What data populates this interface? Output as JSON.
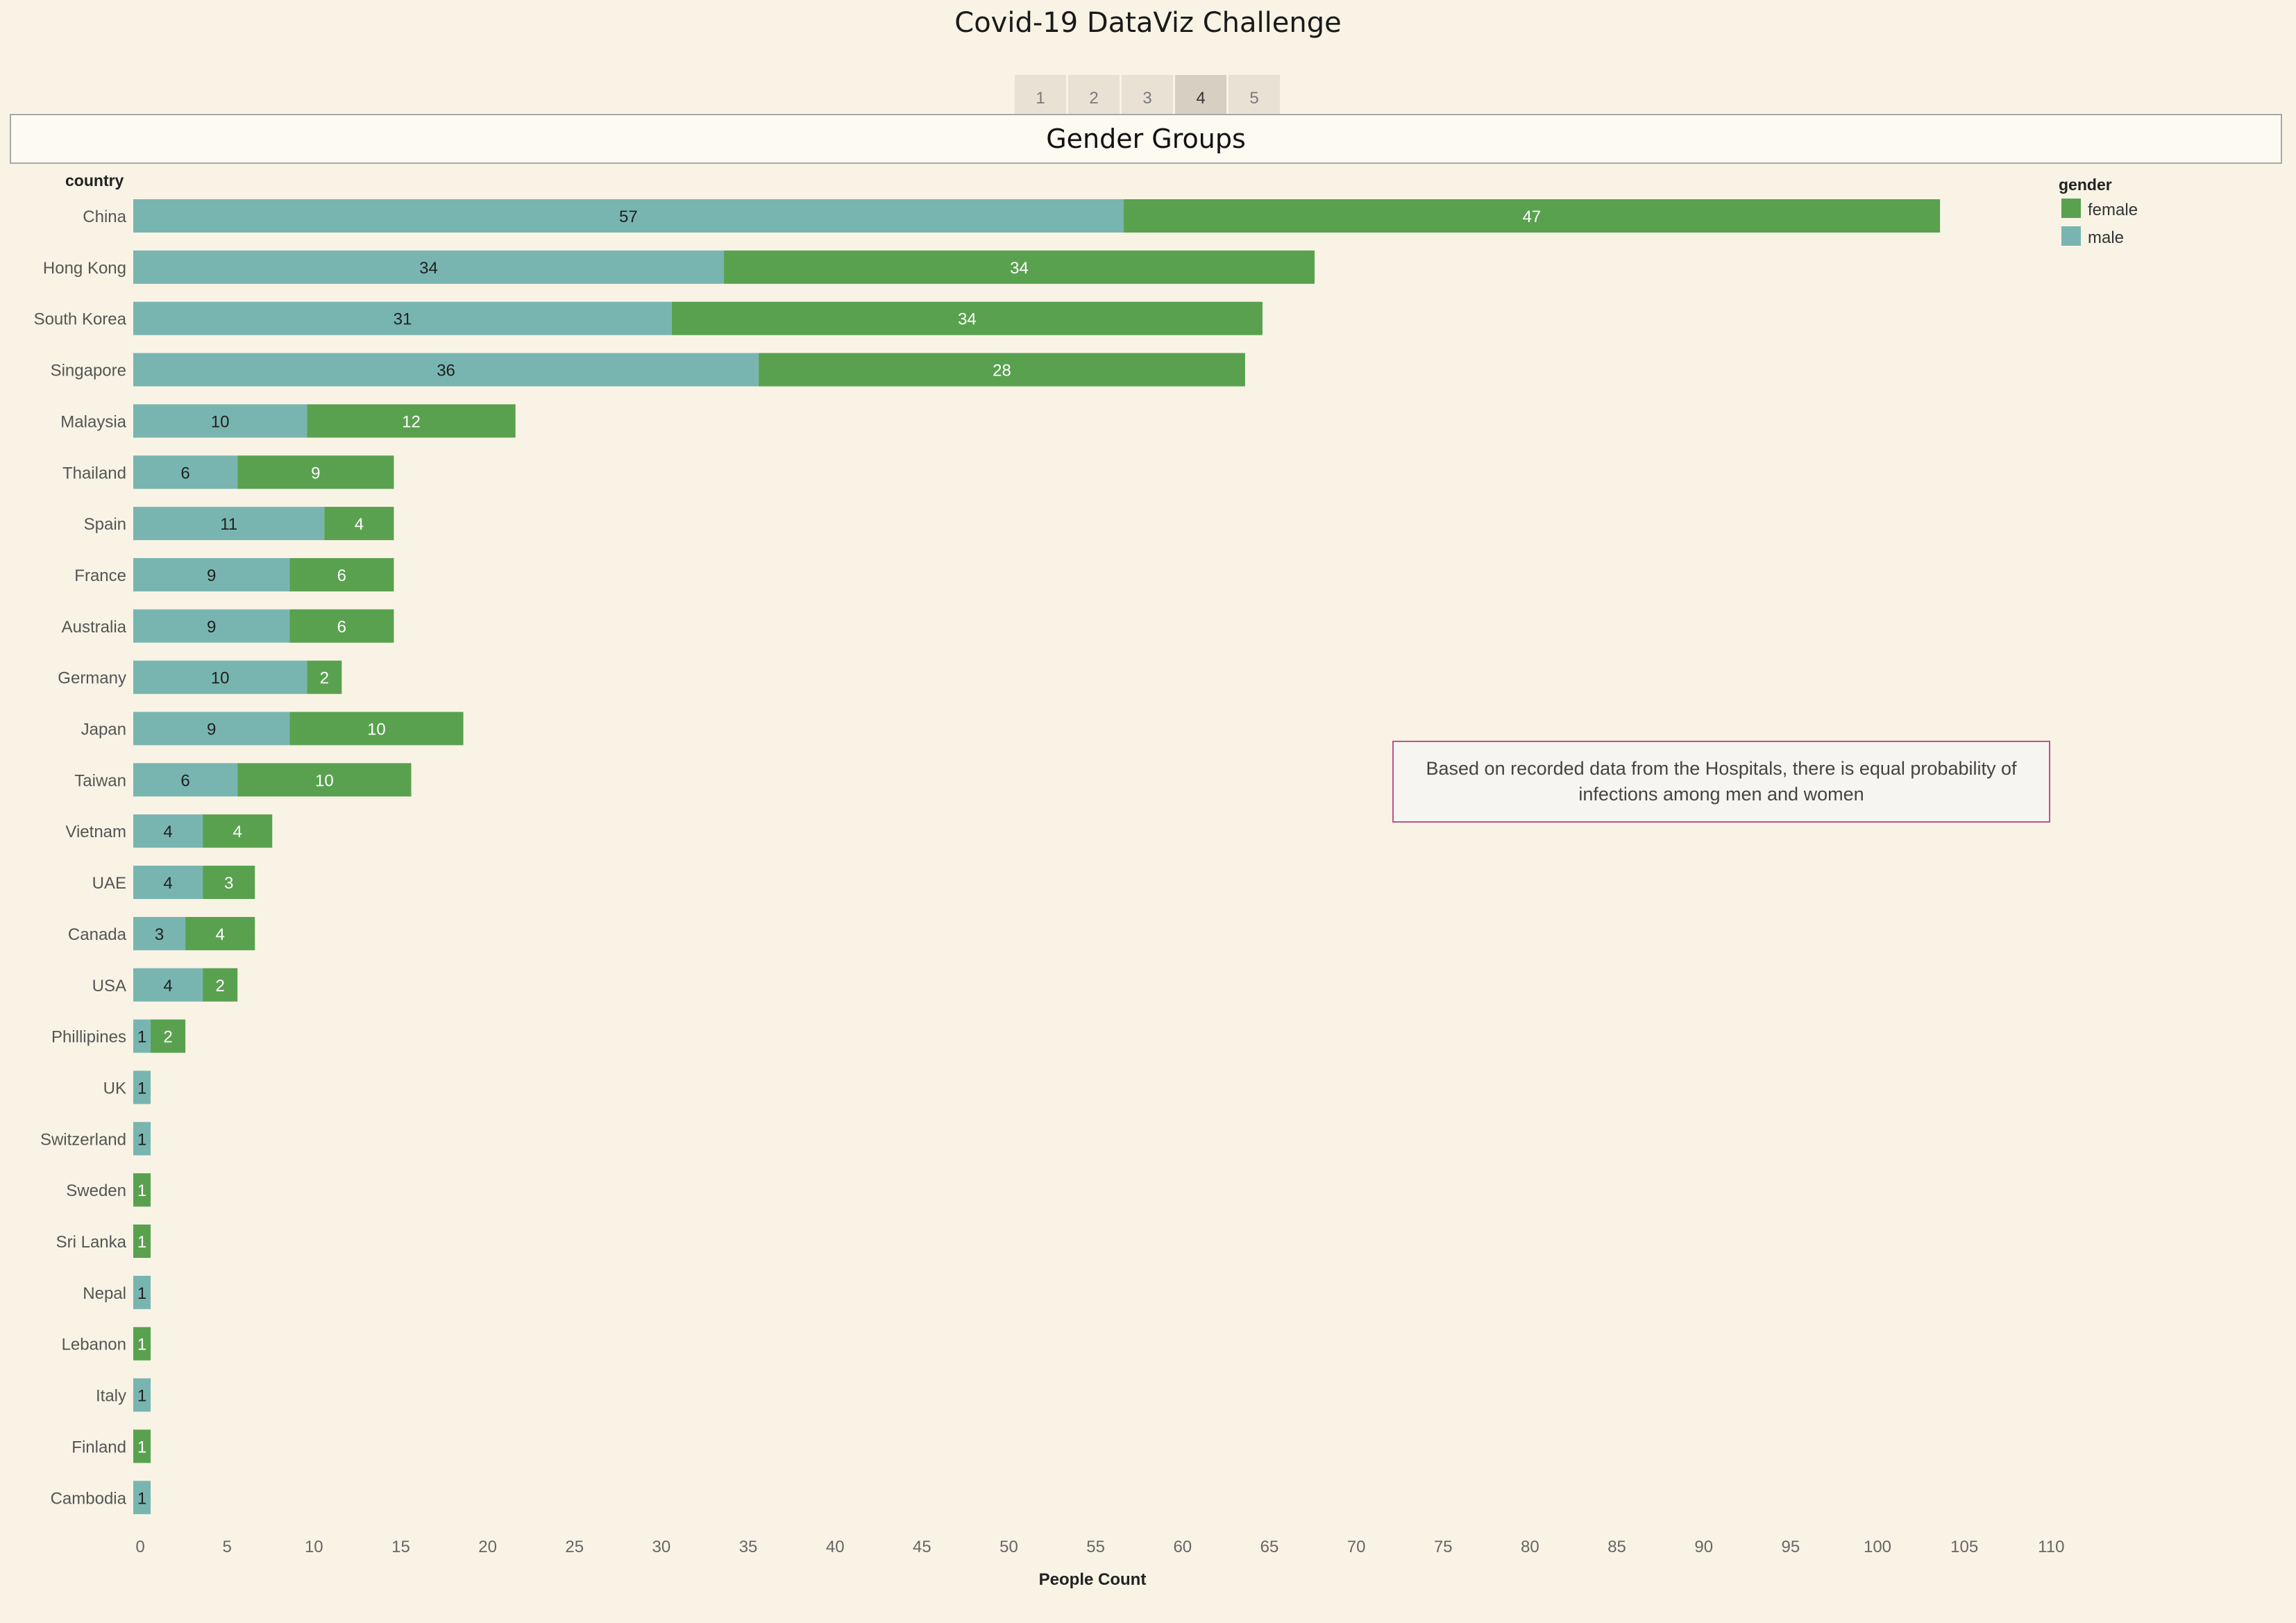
{
  "dashboard": {
    "title": "Covid-19 DataViz Challenge",
    "tabs": [
      "1",
      "2",
      "3",
      "4",
      "5"
    ],
    "active_tab": "4",
    "panel_title": "Gender Groups",
    "annotation": "Based on recorded data from the Hospitals, there is equal probability of infections among men and women"
  },
  "colors": {
    "male": "#79b5b0",
    "female": "#59a14f",
    "background": "#f9f3e6"
  },
  "chart_data": {
    "type": "bar",
    "orientation": "horizontal",
    "stacked": true,
    "title": "Gender Groups",
    "ylabel": "country",
    "xlabel": "People Count",
    "xlim": [
      0,
      110
    ],
    "xticks": [
      0,
      5,
      10,
      15,
      20,
      25,
      30,
      35,
      40,
      45,
      50,
      55,
      60,
      65,
      70,
      75,
      80,
      85,
      90,
      95,
      100,
      105,
      110
    ],
    "legend": {
      "title": "gender",
      "position": "top-right",
      "entries": [
        "female",
        "male"
      ]
    },
    "grid": false,
    "categories": [
      "China",
      "Hong Kong",
      "South Korea",
      "Singapore",
      "Malaysia",
      "Thailand",
      "Spain",
      "France",
      "Australia",
      "Germany",
      "Japan",
      "Taiwan",
      "Vietnam",
      "UAE",
      "Canada",
      "USA",
      "Phillipines",
      "UK",
      "Switzerland",
      "Sweden",
      "Sri Lanka",
      "Nepal",
      "Lebanon",
      "Italy",
      "Finland",
      "Cambodia"
    ],
    "series": [
      {
        "name": "male",
        "values": [
          57,
          34,
          31,
          36,
          10,
          6,
          11,
          9,
          9,
          10,
          9,
          6,
          4,
          4,
          3,
          4,
          1,
          1,
          1,
          0,
          0,
          1,
          0,
          1,
          0,
          1
        ]
      },
      {
        "name": "female",
        "values": [
          47,
          34,
          34,
          28,
          12,
          9,
          4,
          6,
          6,
          2,
          10,
          10,
          4,
          3,
          4,
          2,
          2,
          0,
          0,
          1,
          1,
          0,
          1,
          0,
          1,
          0
        ]
      }
    ]
  }
}
